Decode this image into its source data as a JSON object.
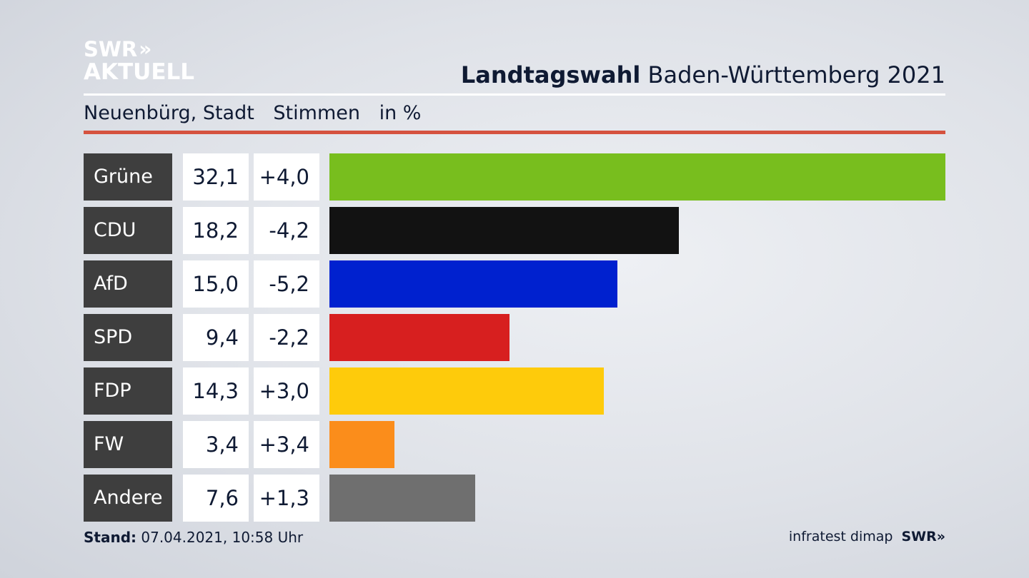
{
  "brand": {
    "line1": "SWR",
    "arrows": "»",
    "line2": "AKTUELL"
  },
  "header": {
    "title_bold": "Landtagswahl",
    "title_rest": " Baden-Württemberg 2021",
    "location": "Neuenbürg, Stadt",
    "measure": "Stimmen",
    "unit": "in %"
  },
  "chart_data": {
    "type": "bar",
    "orientation": "horizontal",
    "categories": [
      "Grüne",
      "CDU",
      "AfD",
      "SPD",
      "FDP",
      "FW",
      "Andere"
    ],
    "values": [
      32.1,
      18.2,
      15.0,
      9.4,
      14.3,
      3.4,
      7.6
    ],
    "value_labels": [
      "32,1",
      "18,2",
      "15,0",
      "9,4",
      "14,3",
      "3,4",
      "7,6"
    ],
    "diff_labels": [
      "+4,0",
      "-4,2",
      "-5,2",
      "-2,2",
      "+3,0",
      "+3,4",
      "+1,3"
    ],
    "colors": [
      "#78be1e",
      "#121212",
      "#0021cf",
      "#d71f1f",
      "#fecb0b",
      "#fb8d1b",
      "#6f6f6f"
    ],
    "xlim": [
      0,
      32.1
    ],
    "grid": false
  },
  "footer": {
    "stand_label": "Stand:",
    "stand_value": " 07.04.2021, 10:58 Uhr",
    "source": "infratest dimap",
    "brand": "SWR»"
  }
}
